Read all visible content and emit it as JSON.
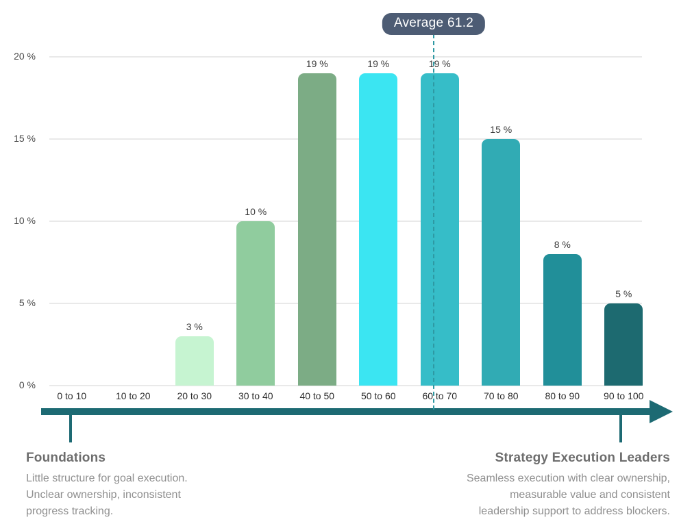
{
  "badge": {
    "label": "Average 61.2"
  },
  "chart_data": {
    "type": "bar",
    "title": "",
    "categories": [
      "0 to 10",
      "10 to 20",
      "20 to 30",
      "30 to 40",
      "40 to 50",
      "50 to 60",
      "60 to 70",
      "70 to 80",
      "80 to 90",
      "90 to 100"
    ],
    "values": [
      0,
      0,
      3,
      10,
      19,
      19,
      19,
      15,
      8,
      5
    ],
    "value_labels": [
      "",
      "",
      "3 %",
      "10 %",
      "19 %",
      "19 %",
      "19 %",
      "15 %",
      "8 %",
      "5 %"
    ],
    "bar_colors": [
      "",
      "",
      "#c6f4d1",
      "#90cc9e",
      "#7cac85",
      "#3be5f2",
      "#36bdc8",
      "#31abb4",
      "#218f99",
      "#1d6a70"
    ],
    "y_axis": {
      "max": 20,
      "ticks": [
        {
          "value": 20,
          "label": "20 %"
        },
        {
          "value": 15,
          "label": "15 %"
        },
        {
          "value": 10,
          "label": "10 %"
        },
        {
          "value": 5,
          "label": "5 %"
        },
        {
          "value": 0,
          "label": "0 %"
        }
      ]
    },
    "average": {
      "value": 61.2,
      "label": "Average 61.2"
    },
    "grid": true,
    "legend": "none",
    "xlabel": "",
    "ylabel": ""
  },
  "footnotes": {
    "left": {
      "title": "Foundations",
      "lines": [
        "Little structure for goal execution.",
        "Unclear ownership, inconsistent",
        "progress tracking."
      ]
    },
    "right": {
      "title": "Strategy Execution Leaders",
      "lines": [
        "Seamless execution with clear ownership,",
        "measurable value and consistent",
        "leadership support to address blockers."
      ]
    }
  },
  "colors": {
    "badge_bg": "#4d5c74",
    "badge_text": "#ffffff",
    "grid_line": "#e9e9e9",
    "avg_line": "#2e99a3",
    "axis_arrow": "#1d6a73",
    "value_label": "#3a3a3a",
    "category_label": "#2d2d2d",
    "y_label": "#4a4a4a",
    "footnote_title": "#6d6d6d",
    "footnote_body": "#8f8f8f"
  }
}
